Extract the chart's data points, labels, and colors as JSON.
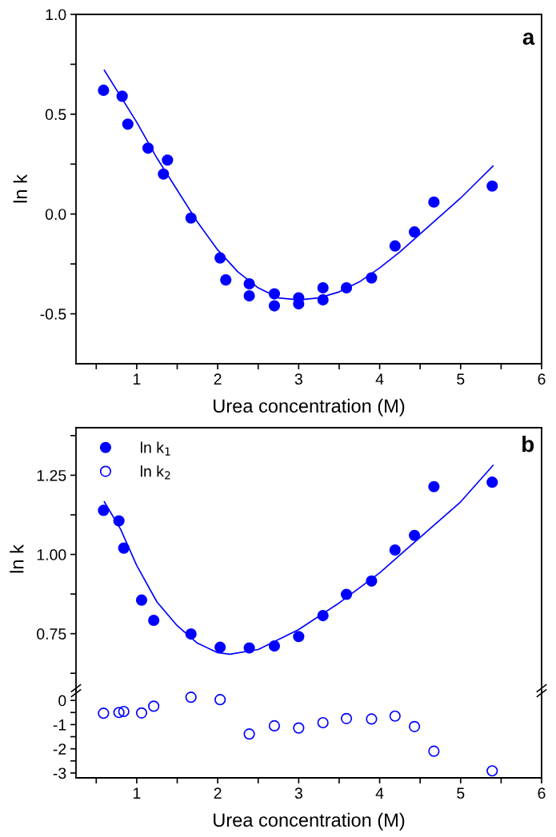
{
  "chart_data": [
    {
      "type": "scatter",
      "xlabel": "Urea concentration (M)",
      "ylabel": "ln k",
      "annotations": [
        "a"
      ],
      "xlim": [
        0.25,
        6
      ],
      "xticks": [
        {
          "value": 0.5,
          "label": null
        },
        1,
        {
          "value": 1.5,
          "label": null
        },
        2,
        {
          "value": 2.5,
          "label": null
        },
        3,
        {
          "value": 3.5,
          "label": null
        },
        4,
        {
          "value": 4.5,
          "label": null
        },
        5,
        {
          "value": 5.5,
          "label": null
        },
        6
      ],
      "ylim": [
        -0.75,
        1.0
      ],
      "yticks": [
        -0.5,
        {
          "value": -0.25,
          "label": null
        },
        {
          "value": 0.0,
          "label": "0.0"
        },
        {
          "value": 0.25,
          "label": null
        },
        0.5,
        {
          "value": 0.75,
          "label": null
        },
        {
          "value": 1.0,
          "label": "1.0"
        }
      ],
      "grid": false,
      "legend": false,
      "series": [
        {
          "color": "#0000ff",
          "marker": "circle",
          "x": [
            0.59,
            0.82,
            0.89,
            1.14,
            1.33,
            1.38,
            1.67,
            2.03,
            2.1,
            2.39,
            2.39,
            2.7,
            2.7,
            3.0,
            3.0,
            3.3,
            3.3,
            3.59,
            3.9,
            4.19,
            4.43,
            4.67,
            5.39
          ],
          "values": [
            0.62,
            0.59,
            0.45,
            0.33,
            0.2,
            0.27,
            -0.02,
            -0.22,
            -0.33,
            -0.35,
            -0.41,
            -0.4,
            -0.46,
            -0.42,
            -0.45,
            -0.37,
            -0.43,
            -0.37,
            -0.32,
            -0.16,
            -0.09,
            0.06,
            0.14
          ]
        },
        {
          "type": "line",
          "color": "#0000ff",
          "marker": "none",
          "line_style": "solid",
          "x": [
            0.6,
            0.8,
            1.0,
            1.25,
            1.5,
            1.75,
            2.0,
            2.25,
            2.5,
            2.75,
            3.0,
            3.25,
            3.5,
            3.75,
            4.0,
            4.25,
            4.5,
            4.75,
            5.0,
            5.2,
            5.4
          ],
          "values": [
            0.72,
            0.59,
            0.46,
            0.28,
            0.12,
            -0.04,
            -0.18,
            -0.29,
            -0.37,
            -0.42,
            -0.43,
            -0.42,
            -0.39,
            -0.34,
            -0.27,
            -0.19,
            -0.1,
            -0.01,
            0.08,
            0.16,
            0.24
          ]
        }
      ]
    },
    {
      "type": "scatter",
      "ylabel": "ln k",
      "annotations": [
        "b"
      ],
      "tick_labels": "y",
      "xlim": [
        0.25,
        6
      ],
      "ylim": [
        0.57,
        1.4
      ],
      "yticks": [
        {
          "value": 0.625,
          "label": null
        },
        {
          "value": 0.75,
          "label": "0.75"
        },
        {
          "value": 0.875,
          "label": null
        },
        {
          "value": 1.0,
          "label": "1.00"
        },
        {
          "value": 1.125,
          "label": null
        },
        1.25,
        {
          "value": 1.375,
          "label": null
        }
      ],
      "grid": false,
      "legend": "top left",
      "series": [
        {
          "name": "ln k$_{1}$",
          "color": "#0000ff",
          "marker": "circle",
          "x": [
            0.59,
            0.78,
            0.84,
            1.06,
            1.21,
            1.67,
            2.03,
            2.39,
            2.7,
            3.0,
            3.3,
            3.59,
            3.9,
            4.19,
            4.43,
            4.67,
            5.39
          ],
          "values": [
            1.139,
            1.106,
            1.02,
            0.856,
            0.792,
            0.749,
            0.707,
            0.705,
            0.711,
            0.741,
            0.807,
            0.874,
            0.916,
            1.014,
            1.06,
            1.214,
            1.228
          ]
        },
        {
          "type": "line",
          "color": "#0000ff",
          "marker": "none",
          "line_style": "solid",
          "x": [
            0.6,
            0.8,
            1.0,
            1.25,
            1.5,
            1.75,
            2.0,
            2.15,
            2.5,
            3.0,
            3.5,
            4.0,
            4.5,
            5.0,
            5.4
          ],
          "values": [
            1.166,
            1.08,
            0.965,
            0.85,
            0.775,
            0.72,
            0.69,
            0.685,
            0.7,
            0.763,
            0.847,
            0.942,
            1.054,
            1.166,
            1.281
          ]
        }
      ]
    },
    {
      "type": "scatter",
      "xlabel": "Urea concentration (M)",
      "xlim": [
        0.25,
        6
      ],
      "xticks": [
        {
          "value": 0.5,
          "label": null
        },
        1,
        {
          "value": 1.5,
          "label": null
        },
        2,
        {
          "value": 2.5,
          "label": null
        },
        3,
        {
          "value": 3.5,
          "label": null
        },
        4,
        {
          "value": 4.5,
          "label": null
        },
        5,
        {
          "value": 5.5,
          "label": null
        },
        6
      ],
      "ylim": [
        -3.2,
        0.4
      ],
      "yticks": [
        -3,
        {
          "value": -2.5,
          "label": null
        },
        -2,
        {
          "value": -1.5,
          "label": null
        },
        -1,
        {
          "value": -0.5,
          "label": null
        },
        0
      ],
      "grid": false,
      "legend": false,
      "series": [
        {
          "name": "ln k$_{2}$",
          "color": "#0000ff",
          "marker": "circle-open",
          "x": [
            0.59,
            0.78,
            0.84,
            1.06,
            1.21,
            1.67,
            2.03,
            2.39,
            2.7,
            3.0,
            3.3,
            3.59,
            3.9,
            4.19,
            4.43,
            4.67,
            5.39
          ],
          "values": [
            -0.53,
            -0.5,
            -0.46,
            -0.52,
            -0.24,
            0.13,
            0.03,
            -1.39,
            -1.05,
            -1.14,
            -0.92,
            -0.75,
            -0.77,
            -0.65,
            -1.08,
            -2.1,
            -2.91
          ]
        }
      ]
    }
  ]
}
